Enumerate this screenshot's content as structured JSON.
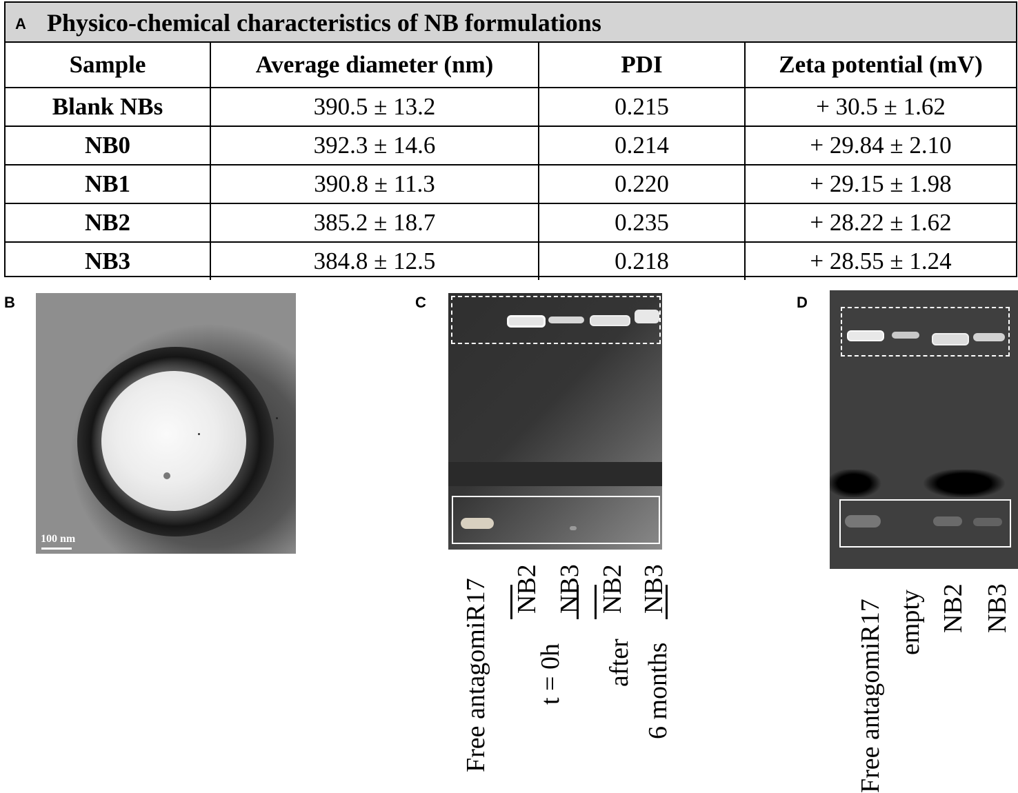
{
  "panel_a": {
    "letter": "A",
    "title": "Physico-chemical characteristics of NB formulations",
    "columns": [
      "Sample",
      "Average diameter (nm)",
      "PDI",
      "Zeta potential (mV)"
    ],
    "rows": [
      [
        "Blank NBs",
        "390.5 ± 13.2",
        "0.215",
        "+ 30.5 ± 1.62"
      ],
      [
        "NB0",
        "392.3 ± 14.6",
        "0.214",
        "+ 29.84 ± 2.10"
      ],
      [
        "NB1",
        "390.8 ± 11.3",
        "0.220",
        "+ 29.15 ± 1.98"
      ],
      [
        "NB2",
        "385.2 ± 18.7",
        "0.235",
        "+ 28.22 ± 1.62"
      ],
      [
        "NB3",
        "384.8 ±  12.5",
        "0.218",
        "+ 28.55 ± 1.24"
      ]
    ]
  },
  "panel_b": {
    "letter": "B",
    "scale_label": "100 nm"
  },
  "panel_c": {
    "letter": "C",
    "lane_labels": [
      "Free antagomiR17",
      "NB2",
      "NB3",
      "NB2",
      "NB3"
    ],
    "group_t0": "t = 0h",
    "group_after": "after",
    "group_months": "6 months"
  },
  "panel_d": {
    "letter": "D",
    "lane_labels": [
      "Free antagomiR17",
      "empty",
      "NB2",
      "NB3"
    ]
  }
}
